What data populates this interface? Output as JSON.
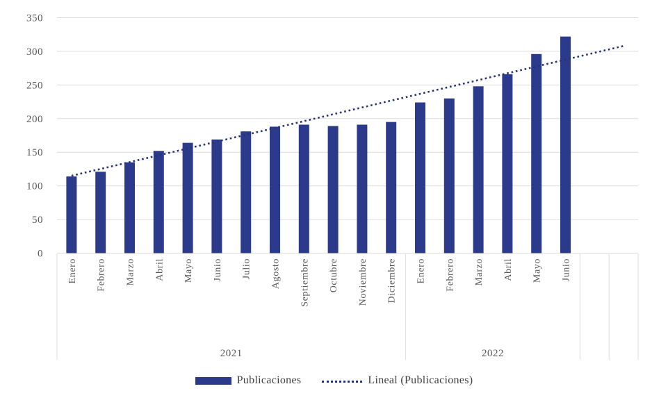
{
  "chart_data": {
    "type": "bar",
    "title": "",
    "xlabel": "",
    "ylabel": "",
    "categories": [
      "Enero",
      "Febrero",
      "Marzo",
      "Abril",
      "Mayo",
      "Junio",
      "Julio",
      "Agosto",
      "Septiembre",
      "Octubre",
      "Noviembre",
      "Diciembre",
      "Enero",
      "Febrero",
      "Marzo",
      "Abril",
      "Mayo",
      "Junio"
    ],
    "category_groups": [
      {
        "label": "2021",
        "count": 12
      },
      {
        "label": "2022",
        "count": 6
      }
    ],
    "empty_trailing_slots": 2,
    "series": [
      {
        "name": "Publicaciones",
        "values": [
          114,
          121,
          135,
          152,
          164,
          169,
          181,
          188,
          191,
          189,
          191,
          195,
          224,
          230,
          248,
          266,
          296,
          322
        ]
      }
    ],
    "trendline": {
      "name": "Lineal (Publicaciones)",
      "style": "dotted",
      "start_slot": 1,
      "start_value": 115,
      "end_slot": 20,
      "end_value": 308
    },
    "y_ticks": [
      0,
      50,
      100,
      150,
      200,
      250,
      300,
      350
    ],
    "ylim": [
      0,
      350
    ],
    "grid": true,
    "legend_position": "bottom",
    "colors": {
      "bar": "#2C3A8C",
      "trend": "#283377",
      "grid": "#DCDCDC",
      "axis_text": "#595959",
      "legend_text": "#404040",
      "background": "#FFFFFF"
    }
  }
}
